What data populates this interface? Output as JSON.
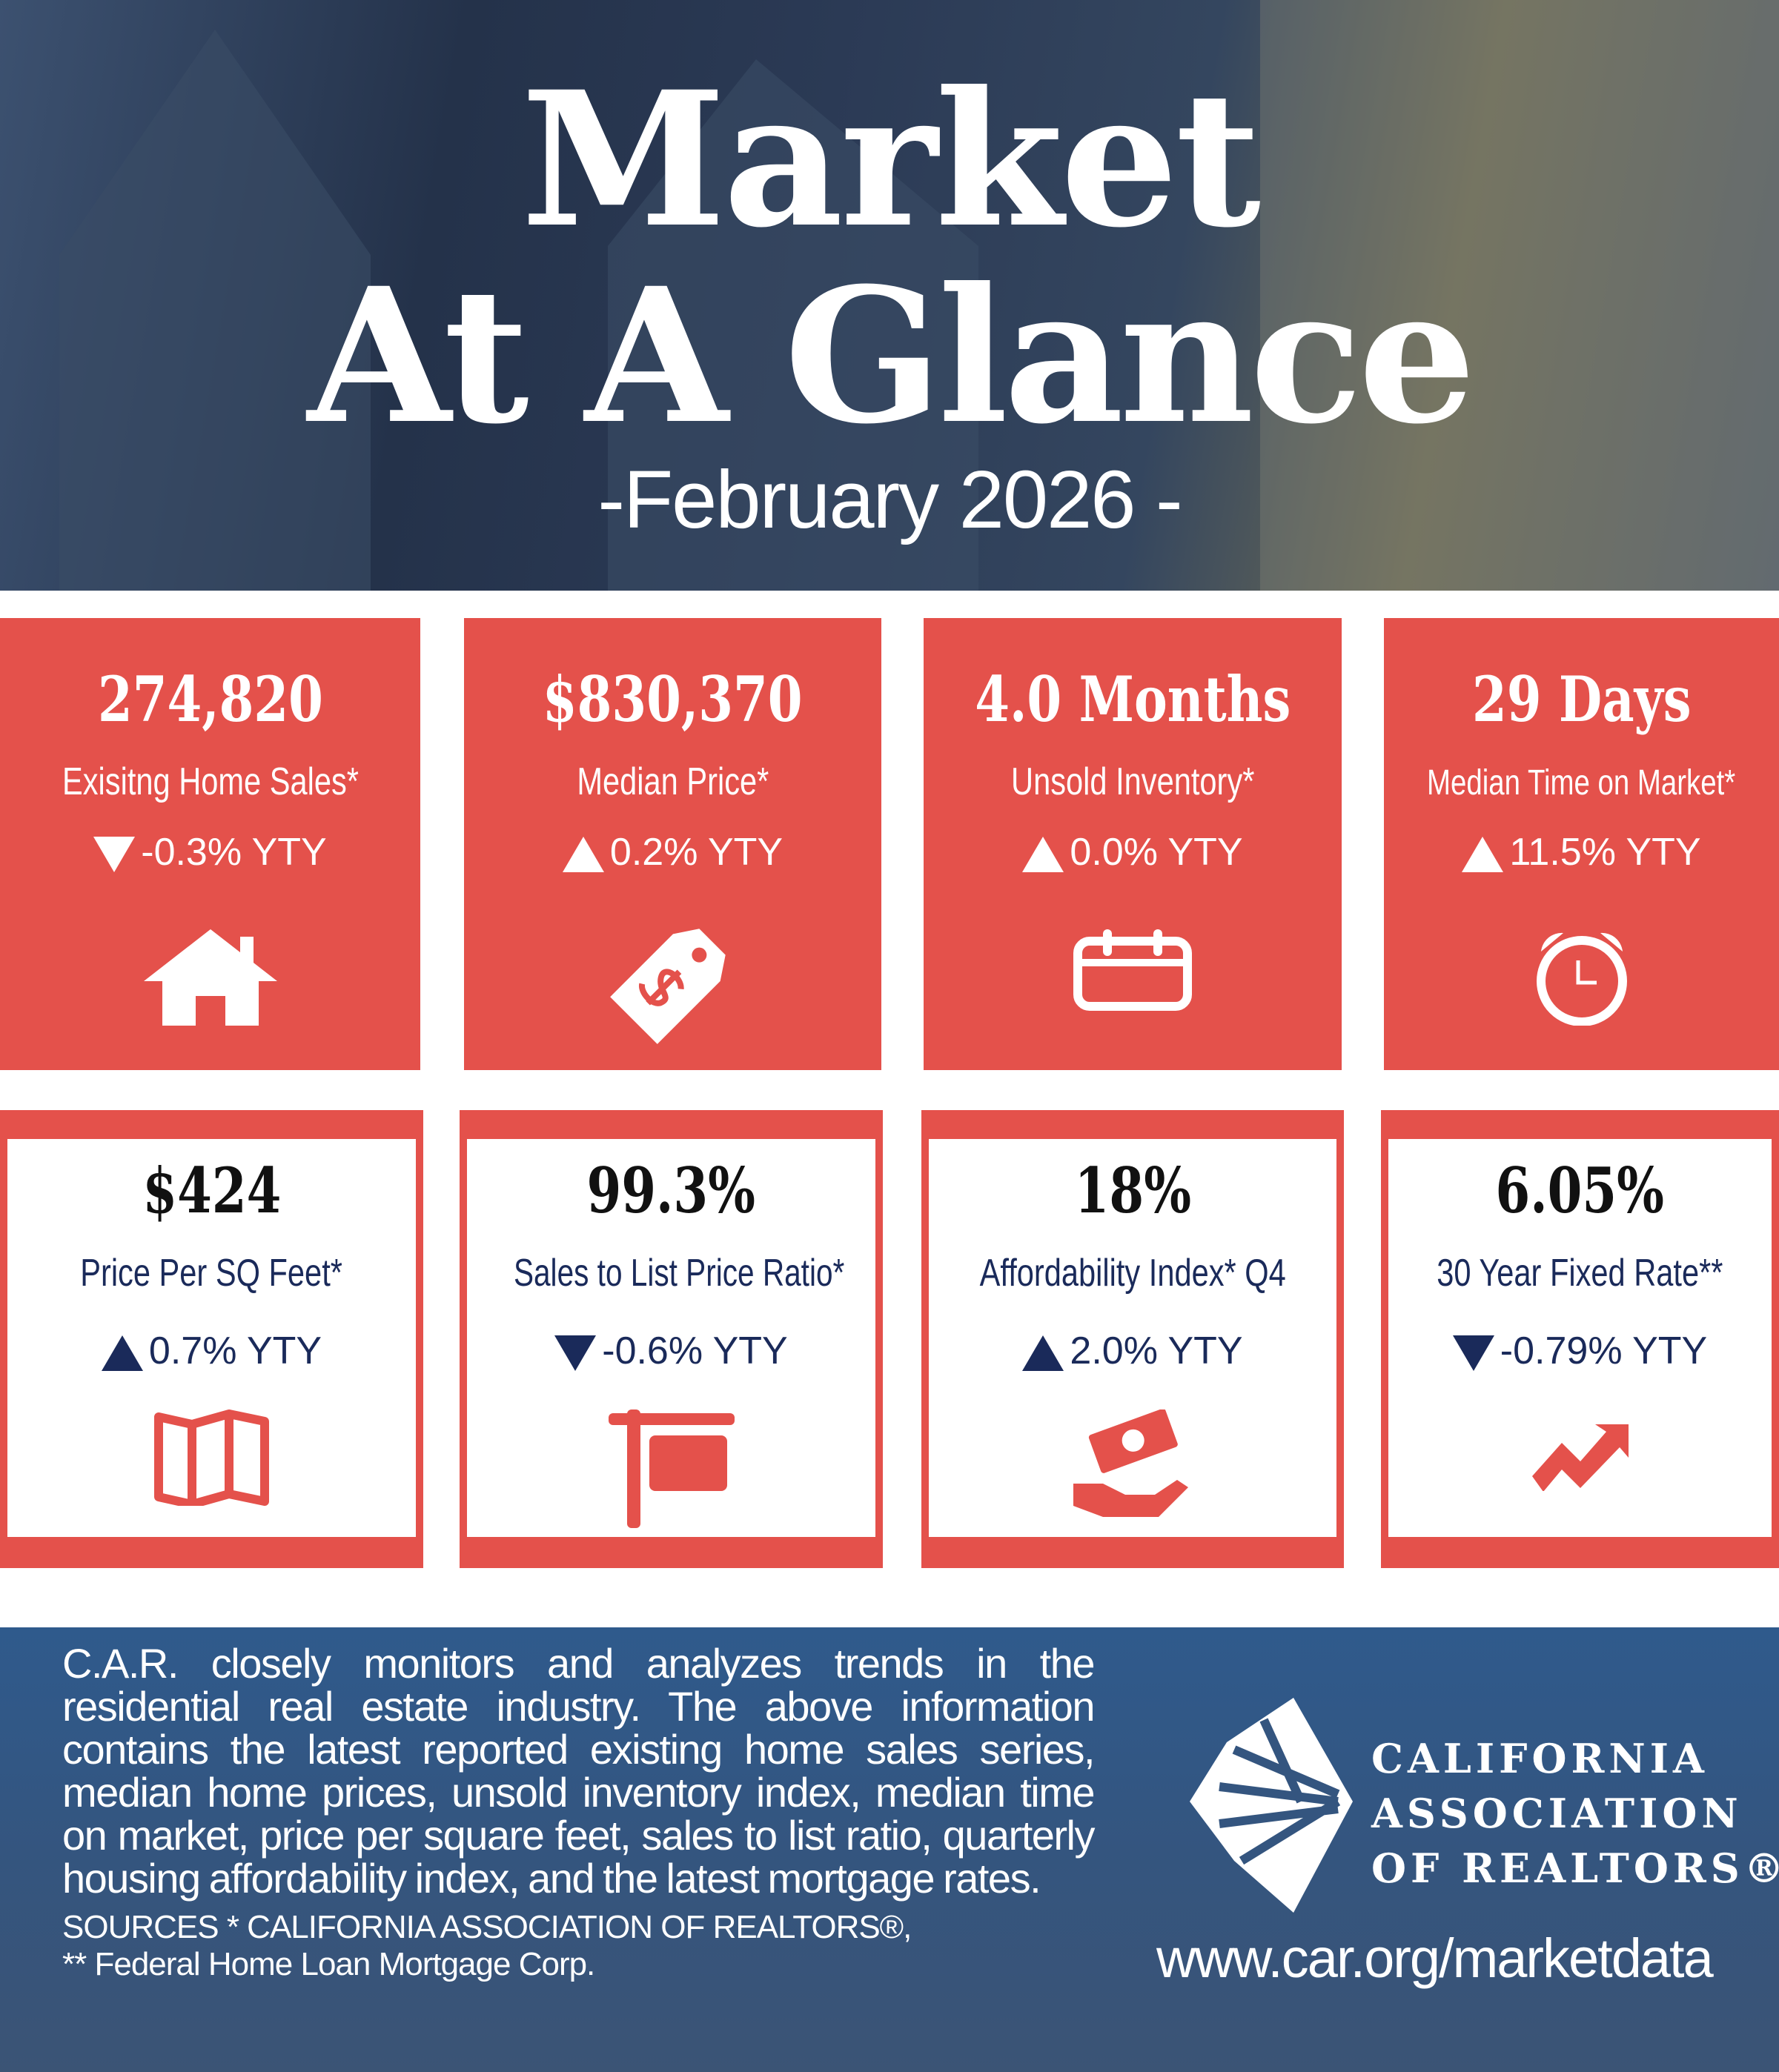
{
  "hero": {
    "title_line1": "Market",
    "title_line2": "At A Glance",
    "subtitle": "-February 2026 -"
  },
  "colors": {
    "accent": "#E4514B",
    "navy": "#1a2a5a",
    "footer": "#2f5a8c"
  },
  "top_cards": [
    {
      "value": "274,820",
      "label": "Exisitng Home Sales*",
      "direction": "down",
      "change": "-0.3% YTY",
      "icon": "house-icon"
    },
    {
      "value": "$830,370",
      "label": "Median Price*",
      "direction": "up",
      "change": "0.2% YTY",
      "icon": "price-tag-icon"
    },
    {
      "value": "4.0 Months",
      "label": "Unsold Inventory*",
      "direction": "up",
      "change": "0.0% YTY",
      "icon": "calendar-icon"
    },
    {
      "value": "29 Days",
      "label": "Median Time on Market*",
      "direction": "up",
      "change": "11.5% YTY",
      "icon": "alarm-clock-icon"
    }
  ],
  "bottom_cards": [
    {
      "value": "$424",
      "label": "Price Per SQ Feet*",
      "direction": "up",
      "change": "0.7% YTY",
      "icon": "map-icon"
    },
    {
      "value": "99.3%",
      "label": "Sales to List Price Ratio*",
      "direction": "down",
      "change": "-0.6% YTY",
      "icon": "sign-post-icon"
    },
    {
      "value": "18%",
      "label": "Affordability Index* Q4",
      "direction": "up",
      "change": "2.0% YTY",
      "icon": "money-hand-icon"
    },
    {
      "value": "6.05%",
      "label": "30 Year Fixed Rate**",
      "direction": "down",
      "change": "-0.79% YTY",
      "icon": "trend-arrow-icon"
    }
  ],
  "footer": {
    "blurb": "C.A.R. closely monitors and analyzes trends in the residential real estate industry. The above information contains the latest reported existing home sales series, median home prices, unsold inventory index, median time on market, price per square feet, sales to list ratio, quarterly housing affordability index, and the latest mortgage rates.",
    "sources_line1": "SOURCES * CALIFORNIA ASSOCIATION OF REALTORS®,",
    "sources_line2": "** Federal Home Loan Mortgage Corp.",
    "org_line1": "CALIFORNIA",
    "org_line2": "ASSOCIATION",
    "org_line3": "OF REALTORS®",
    "url": "www.car.org/marketdata"
  }
}
